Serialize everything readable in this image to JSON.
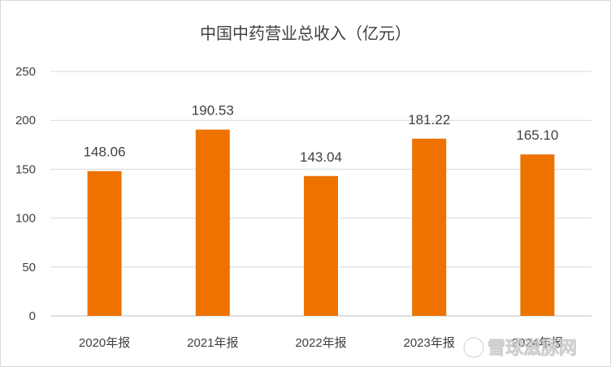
{
  "chart_data": {
    "type": "bar",
    "title": "中国中药营业总收入（亿元）",
    "categories": [
      "2020年报",
      "2021年报",
      "2022年报",
      "2023年报",
      "2024年报"
    ],
    "values": [
      148.06,
      190.53,
      143.04,
      181.22,
      165.1
    ],
    "value_labels": [
      "148.06",
      "190.53",
      "143.04",
      "181.22",
      "165.10"
    ],
    "ylim": [
      0,
      250
    ],
    "yticks": [
      0,
      50,
      100,
      150,
      200,
      250
    ],
    "xlabel": "",
    "ylabel": "",
    "grid": true,
    "legend": "none",
    "bar_color": "#ED7200"
  },
  "watermark": {
    "icon": "snowball-logo-icon",
    "text": "雪球滋脉网"
  }
}
